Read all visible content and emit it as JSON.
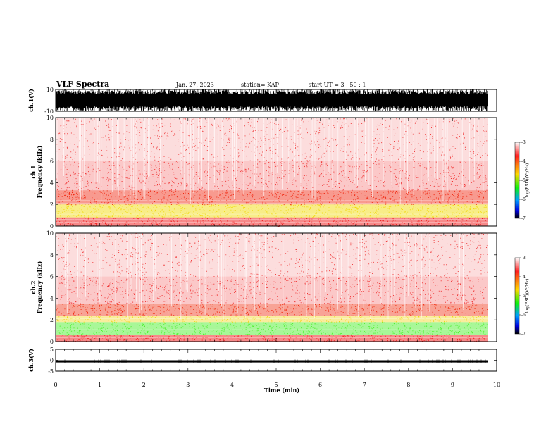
{
  "header": {
    "title": "VLF Spectra",
    "date": "Jan. 27, 2023",
    "station": "station= KAP",
    "start": "start  UT =   3 : 50 : 1"
  },
  "chart_data": [
    {
      "type": "line",
      "name": "ch1-waveform",
      "ylabel": "ch.1(V)",
      "ylim": [
        -10,
        10
      ],
      "yticks": [
        "10",
        "-10"
      ],
      "xlim": [
        0,
        10
      ],
      "data_extent_min": 9.8,
      "description_signal": "dense noise saturating between -10 and 10 V"
    },
    {
      "type": "heatmap",
      "name": "ch1-spectrogram",
      "ylabel": "ch.1\nFrequency (kHz)",
      "ylabel_top": "ch.1",
      "ylabel_bottom": "Frequency (kHz)",
      "ylim": [
        0,
        10
      ],
      "yticks": [
        "0",
        "2",
        "4",
        "6",
        "8",
        "10"
      ],
      "xlim": [
        0,
        10
      ],
      "data_extent_min": 9.8,
      "bands": [
        {
          "from": 0.0,
          "to": 0.8,
          "color": "#ee1111",
          "density": 0.9
        },
        {
          "from": 0.8,
          "to": 2.0,
          "color": "#f0d800",
          "density": 0.85
        },
        {
          "from": 2.0,
          "to": 3.3,
          "color": "#ee1a00",
          "density": 0.8
        },
        {
          "from": 3.3,
          "to": 6.0,
          "color": "#ee2020",
          "density": 0.45
        },
        {
          "from": 6.0,
          "to": 10.0,
          "color": "#ee3030",
          "density": 0.3
        }
      ],
      "colorbar": {
        "label": "log(PSD)(V²/Hz)",
        "range": [
          -7,
          -3
        ],
        "ticks": [
          "-3",
          "-4",
          "-5",
          "-6",
          "-7"
        ]
      }
    },
    {
      "type": "heatmap",
      "name": "ch2-spectrogram",
      "ylabel_top": "ch.2",
      "ylabel_bottom": "Frequency (kHz)",
      "ylim": [
        0,
        10
      ],
      "yticks": [
        "0",
        "2",
        "4",
        "6",
        "8",
        "10"
      ],
      "xlim": [
        0,
        10
      ],
      "data_extent_min": 9.8,
      "bands": [
        {
          "from": 0.0,
          "to": 0.6,
          "color": "#ee1111",
          "density": 0.9
        },
        {
          "from": 0.6,
          "to": 1.8,
          "color": "#44ee22",
          "density": 0.85
        },
        {
          "from": 1.8,
          "to": 2.4,
          "color": "#f0d000",
          "density": 0.7
        },
        {
          "from": 2.4,
          "to": 3.5,
          "color": "#ee2000",
          "density": 0.75
        },
        {
          "from": 3.5,
          "to": 6.0,
          "color": "#ee2020",
          "density": 0.45
        },
        {
          "from": 6.0,
          "to": 10.0,
          "color": "#ee3030",
          "density": 0.3
        }
      ],
      "colorbar": {
        "label": "log(PSD)(V²/Hz)",
        "range": [
          -7,
          -3
        ],
        "ticks": [
          "-3",
          "-4",
          "-5",
          "-6",
          "-7"
        ]
      }
    },
    {
      "type": "line",
      "name": "ch3-waveform",
      "ylabel": "ch.3(V)",
      "ylim": [
        -5,
        5
      ],
      "yticks": [
        "5",
        "0",
        "-5"
      ],
      "xlim": [
        0,
        10
      ],
      "data_extent_min": 9.8,
      "level": [
        -1.0,
        0.0
      ]
    }
  ],
  "xaxis": {
    "label": "Time (min)",
    "ticks": [
      "0",
      "1",
      "2",
      "3",
      "4",
      "5",
      "6",
      "7",
      "8",
      "9",
      "10"
    ],
    "range": [
      0,
      10
    ]
  },
  "colors": {
    "cb_stops": [
      "#ffffff",
      "#ff0000",
      "#ffd800",
      "#00ff00",
      "#00c0ff",
      "#0000ff",
      "#000000"
    ]
  }
}
